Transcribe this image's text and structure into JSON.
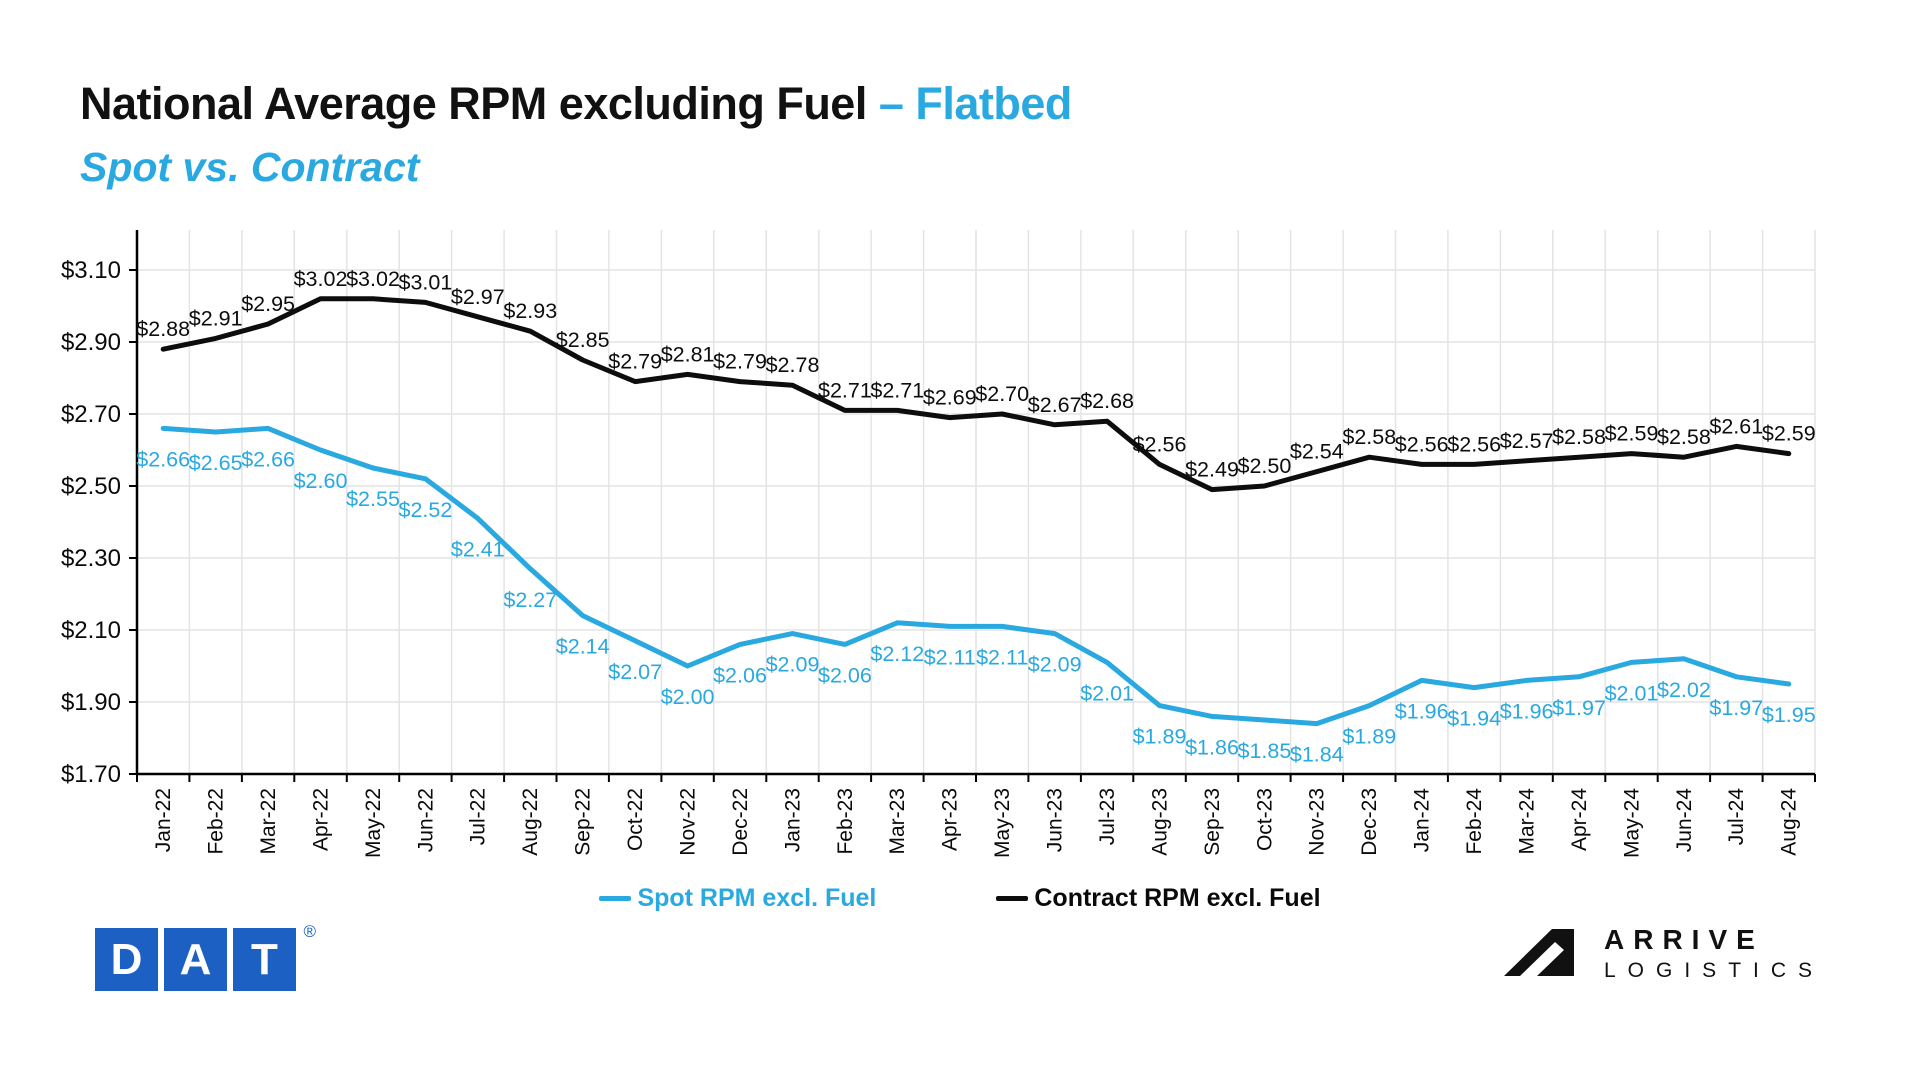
{
  "title": {
    "main": "National Average RPM excluding Fuel",
    "highlight": "– Flatbed",
    "subtitle": "Spot vs. Contract"
  },
  "colors": {
    "spot": "#29a9e0",
    "contract": "#0d0d0d",
    "grid": "#e4e4e4",
    "axis": "#000000",
    "dat_blue": "#1c60c4"
  },
  "chart_data": {
    "type": "line",
    "categories": [
      "Jan-22",
      "Feb-22",
      "Mar-22",
      "Apr-22",
      "May-22",
      "Jun-22",
      "Jul-22",
      "Aug-22",
      "Sep-22",
      "Oct-22",
      "Nov-22",
      "Dec-22",
      "Jan-23",
      "Feb-23",
      "Mar-23",
      "Apr-23",
      "May-23",
      "Jun-23",
      "Jul-23",
      "Aug-23",
      "Sep-23",
      "Oct-23",
      "Nov-23",
      "Dec-23",
      "Jan-24",
      "Feb-24",
      "Mar-24",
      "Apr-24",
      "May-24",
      "Jun-24",
      "Jul-24",
      "Aug-24"
    ],
    "series": [
      {
        "name": "Spot RPM excl. Fuel",
        "color_key": "spot",
        "label_position": "below",
        "values": [
          2.66,
          2.65,
          2.66,
          2.6,
          2.55,
          2.52,
          2.41,
          2.27,
          2.14,
          2.07,
          2.0,
          2.06,
          2.09,
          2.06,
          2.12,
          2.11,
          2.11,
          2.09,
          2.01,
          1.89,
          1.86,
          1.85,
          1.84,
          1.89,
          1.96,
          1.94,
          1.96,
          1.97,
          2.01,
          2.02,
          1.97,
          1.95
        ]
      },
      {
        "name": "Contract RPM excl. Fuel",
        "color_key": "contract",
        "label_position": "above",
        "values": [
          2.88,
          2.91,
          2.95,
          3.02,
          3.02,
          3.01,
          2.97,
          2.93,
          2.85,
          2.79,
          2.81,
          2.79,
          2.78,
          2.71,
          2.71,
          2.69,
          2.7,
          2.67,
          2.68,
          2.56,
          2.49,
          2.5,
          2.54,
          2.58,
          2.56,
          2.56,
          2.57,
          2.58,
          2.59,
          2.58,
          2.61,
          2.59
        ]
      }
    ],
    "y_ticks": [
      "$3.10",
      "$2.90",
      "$2.70",
      "$2.50",
      "$2.30",
      "$2.10",
      "$1.90",
      "$1.70"
    ],
    "ylim": [
      1.7,
      3.1
    ],
    "ytick_step": 0.2,
    "grid": true,
    "legend_position": "bottom",
    "label_format": "$0.00"
  },
  "footer": {
    "dat": {
      "letters": [
        "D",
        "A",
        "T"
      ],
      "reg_mark": "®"
    },
    "arrive": {
      "line1": "ARRIVE",
      "line2": "LOGISTICS"
    }
  }
}
